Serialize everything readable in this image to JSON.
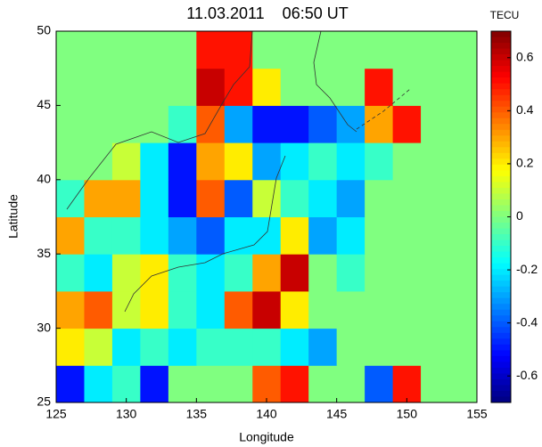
{
  "chart_data": {
    "type": "heatmap",
    "title": "11.03.2011    06:50 UT",
    "x_label": "Longitude",
    "y_label": "Latitude",
    "colorbar_label": "TECU",
    "x": [
      126,
      128,
      130,
      132,
      134,
      136,
      138,
      140,
      142,
      144,
      146,
      148,
      150,
      152,
      154
    ],
    "y": [
      26.25,
      28.75,
      31.25,
      33.75,
      36.25,
      38.75,
      41.25,
      43.75,
      46.25,
      48.75
    ],
    "values": [
      [
        -0.5,
        -0.2,
        -0.1,
        -0.5,
        0,
        0,
        0,
        0.4,
        0.5,
        0,
        0,
        -0.4,
        0.5,
        0,
        0
      ],
      [
        0.2,
        0.1,
        -0.2,
        -0.1,
        -0.2,
        -0.1,
        -0.1,
        -0.1,
        -0.2,
        -0.3,
        0,
        0,
        0,
        0,
        0
      ],
      [
        0.3,
        0.4,
        0.1,
        0.2,
        -0.1,
        -0.2,
        0.4,
        0.6,
        0.2,
        0,
        0,
        0,
        0,
        0,
        0
      ],
      [
        -0.1,
        -0.2,
        0.1,
        0.2,
        -0.1,
        -0.2,
        -0.1,
        0.3,
        0.6,
        0,
        -0.1,
        0,
        0,
        0,
        0
      ],
      [
        0.3,
        -0.1,
        -0.1,
        -0.2,
        -0.3,
        -0.4,
        -0.2,
        -0.2,
        0.2,
        -0.3,
        -0.2,
        0,
        0,
        0,
        0
      ],
      [
        -0.1,
        0.3,
        0.3,
        -0.2,
        -0.5,
        0.4,
        -0.4,
        0.1,
        -0.1,
        -0.2,
        -0.3,
        0,
        0,
        0,
        0
      ],
      [
        0,
        0,
        0.1,
        -0.2,
        -0.5,
        0.3,
        0.2,
        -0.3,
        -0.2,
        -0.1,
        -0.2,
        -0.1,
        0,
        0,
        0
      ],
      [
        0,
        0,
        0,
        0,
        -0.1,
        0.4,
        -0.3,
        -0.5,
        -0.5,
        -0.4,
        -0.3,
        0.3,
        0.5,
        0,
        0
      ],
      [
        0,
        0,
        0,
        0,
        0,
        0.6,
        0.5,
        0.2,
        0,
        0,
        0,
        0.5,
        0,
        0,
        0
      ],
      [
        0,
        0,
        0,
        0,
        0,
        0.5,
        0.5,
        0,
        0,
        0,
        0,
        0,
        0,
        0,
        0
      ]
    ],
    "xlim": [
      125,
      155
    ],
    "ylim": [
      25,
      50
    ],
    "xticks": [
      125,
      130,
      135,
      140,
      145,
      150,
      155
    ],
    "yticks": [
      25,
      30,
      35,
      40,
      45,
      50
    ],
    "zlim": [
      -0.7,
      0.7
    ],
    "colorbar_ticks": [
      -0.6,
      -0.4,
      -0.2,
      0,
      0.2,
      0.4,
      0.6
    ],
    "colormap": "jet"
  }
}
